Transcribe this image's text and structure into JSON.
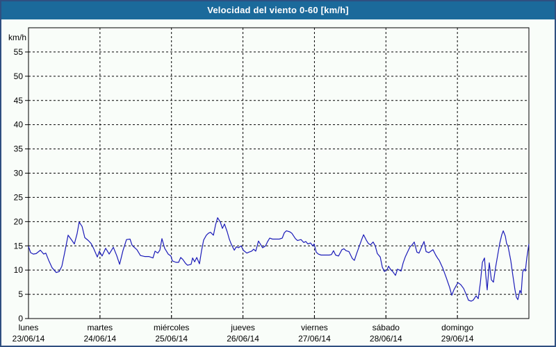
{
  "title": "Velocidad del viento 0-60 [km/h]",
  "colors": {
    "title_bar": "#1b6a9b",
    "title_text": "#ffffff",
    "line": "#1a1ab8",
    "axis": "#000000",
    "grid": "#000000",
    "background": "#f9fdf9",
    "frame_border": "#2f4f80"
  },
  "chart_data": {
    "type": "line",
    "title": "Velocidad del viento 0-60 [km/h]",
    "ylabel": "km/h",
    "xlabel": "",
    "ylim": [
      0,
      60
    ],
    "y_ticks": [
      0,
      5,
      10,
      15,
      20,
      25,
      30,
      35,
      40,
      45,
      50,
      55
    ],
    "grid": "dashed",
    "legend": "none",
    "x_hours_total": 168,
    "x_days": [
      {
        "name": "lunes",
        "date": "23/06/14"
      },
      {
        "name": "martes",
        "date": "24/06/14"
      },
      {
        "name": "miércoles",
        "date": "25/06/14"
      },
      {
        "name": "jueves",
        "date": "26/06/14"
      },
      {
        "name": "viernes",
        "date": "27/06/14"
      },
      {
        "name": "sábado",
        "date": "28/06/14"
      },
      {
        "name": "domingo",
        "date": "29/06/14"
      }
    ],
    "series": [
      {
        "name": "Velocidad del viento",
        "x_hours": [
          0.0,
          0.7,
          1.6,
          2.6,
          4.0,
          5.1,
          5.8,
          6.8,
          7.9,
          9.3,
          10.3,
          11.2,
          12.1,
          13.3,
          14.5,
          15.4,
          16.3,
          17.0,
          18.0,
          18.9,
          20.1,
          21.0,
          21.9,
          23.1,
          23.8,
          24.7,
          25.9,
          27.1,
          28.5,
          29.6,
          30.6,
          31.7,
          32.9,
          34.1,
          34.8,
          36.4,
          37.6,
          39.0,
          40.4,
          41.8,
          42.5,
          43.4,
          44.1,
          44.8,
          45.7,
          46.9,
          47.8,
          48.3,
          49.5,
          50.4,
          51.1,
          51.8,
          52.7,
          53.4,
          54.6,
          55.1,
          55.8,
          56.5,
          57.4,
          58.1,
          58.8,
          59.7,
          60.4,
          61.1,
          62.1,
          62.8,
          63.5,
          64.4,
          65.1,
          65.8,
          66.7,
          67.4,
          68.1,
          69.1,
          69.8,
          70.5,
          71.4,
          72.1,
          73.3,
          74.0,
          74.9,
          75.6,
          76.3,
          77.2,
          77.9,
          78.6,
          79.6,
          80.3,
          81.0,
          81.9,
          83.1,
          84.2,
          85.2,
          85.9,
          86.6,
          87.7,
          88.4,
          89.6,
          90.3,
          91.5,
          92.4,
          93.1,
          93.8,
          94.7,
          95.4,
          95.9,
          96.6,
          97.3,
          98.2,
          99.6,
          101.0,
          101.7,
          102.4,
          103.1,
          104.1,
          105.2,
          105.9,
          106.6,
          107.6,
          108.7,
          109.4,
          110.1,
          111.1,
          111.8,
          112.5,
          113.4,
          114.1,
          114.8,
          115.7,
          116.4,
          117.1,
          118.1,
          118.8,
          119.5,
          120.4,
          120.9,
          121.6,
          122.3,
          123.2,
          123.9,
          125.1,
          125.8,
          126.5,
          127.4,
          128.1,
          128.8,
          129.5,
          130.4,
          131.1,
          132.1,
          132.8,
          133.5,
          134.4,
          135.1,
          135.8,
          136.7,
          137.4,
          137.9,
          139.1,
          140.2,
          141.4,
          142.1,
          142.8,
          143.5,
          144.2,
          145.1,
          146.1,
          147.0,
          147.7,
          148.6,
          149.3,
          150.3,
          151.0,
          151.7,
          152.4,
          153.1,
          153.5,
          154.0,
          154.7,
          155.4,
          156.1,
          156.8,
          157.5,
          158.2,
          158.9,
          159.4,
          160.1,
          160.5,
          161.0,
          161.9,
          162.6,
          163.3,
          163.8,
          164.3,
          165.0,
          165.4,
          165.9,
          166.4,
          166.8,
          167.3,
          168.0
        ],
        "values": [
          14.9,
          13.6,
          13.3,
          13.4,
          14.1,
          13.3,
          13.5,
          12.0,
          10.5,
          9.5,
          9.7,
          10.8,
          13.5,
          17.2,
          16.2,
          15.4,
          17.5,
          19.9,
          19.0,
          16.7,
          16.1,
          15.5,
          14.4,
          12.7,
          13.9,
          12.9,
          14.5,
          13.3,
          14.7,
          13.0,
          11.2,
          14.0,
          16.3,
          16.4,
          15.1,
          14.2,
          13.0,
          12.8,
          12.8,
          12.5,
          13.9,
          13.5,
          14.1,
          16.5,
          14.5,
          13.3,
          12.9,
          11.9,
          11.6,
          11.6,
          12.6,
          12.2,
          11.4,
          11.0,
          11.2,
          12.5,
          11.7,
          12.6,
          11.3,
          14.0,
          16.2,
          17.2,
          17.6,
          17.8,
          17.2,
          19.3,
          20.8,
          19.9,
          18.6,
          19.5,
          17.9,
          16.4,
          15.3,
          14.1,
          14.8,
          14.6,
          15.0,
          14.1,
          13.5,
          13.7,
          13.9,
          14.3,
          13.9,
          16.0,
          15.3,
          14.6,
          15.0,
          15.9,
          16.6,
          16.4,
          16.4,
          16.4,
          16.6,
          17.7,
          18.1,
          17.9,
          17.6,
          16.5,
          16.1,
          16.3,
          15.7,
          15.9,
          15.4,
          15.6,
          15.0,
          15.4,
          13.7,
          13.3,
          13.1,
          13.1,
          13.1,
          13.2,
          14.0,
          13.1,
          12.9,
          14.2,
          14.4,
          14.0,
          13.8,
          12.4,
          12.0,
          13.3,
          15.0,
          16.2,
          17.3,
          16.2,
          15.5,
          15.2,
          15.8,
          15.0,
          13.4,
          12.7,
          10.6,
          9.7,
          10.1,
          10.8,
          10.1,
          9.7,
          8.9,
          10.2,
          9.8,
          11.5,
          12.7,
          13.9,
          14.8,
          15.2,
          15.8,
          13.7,
          13.5,
          14.9,
          15.9,
          13.8,
          13.6,
          13.9,
          14.2,
          13.1,
          12.4,
          12.0,
          10.4,
          8.5,
          6.4,
          4.8,
          5.9,
          6.7,
          7.4,
          7.0,
          6.2,
          4.9,
          3.8,
          3.6,
          3.8,
          4.7,
          4.1,
          7.3,
          11.6,
          12.5,
          9.0,
          5.9,
          11.5,
          8.0,
          7.5,
          10.5,
          13.0,
          15.5,
          17.3,
          18.1,
          17.0,
          15.5,
          14.9,
          12.0,
          8.9,
          6.0,
          4.4,
          3.9,
          5.8,
          5.2,
          9.6,
          10.2,
          9.8,
          12.5,
          15.4
        ]
      }
    ]
  }
}
